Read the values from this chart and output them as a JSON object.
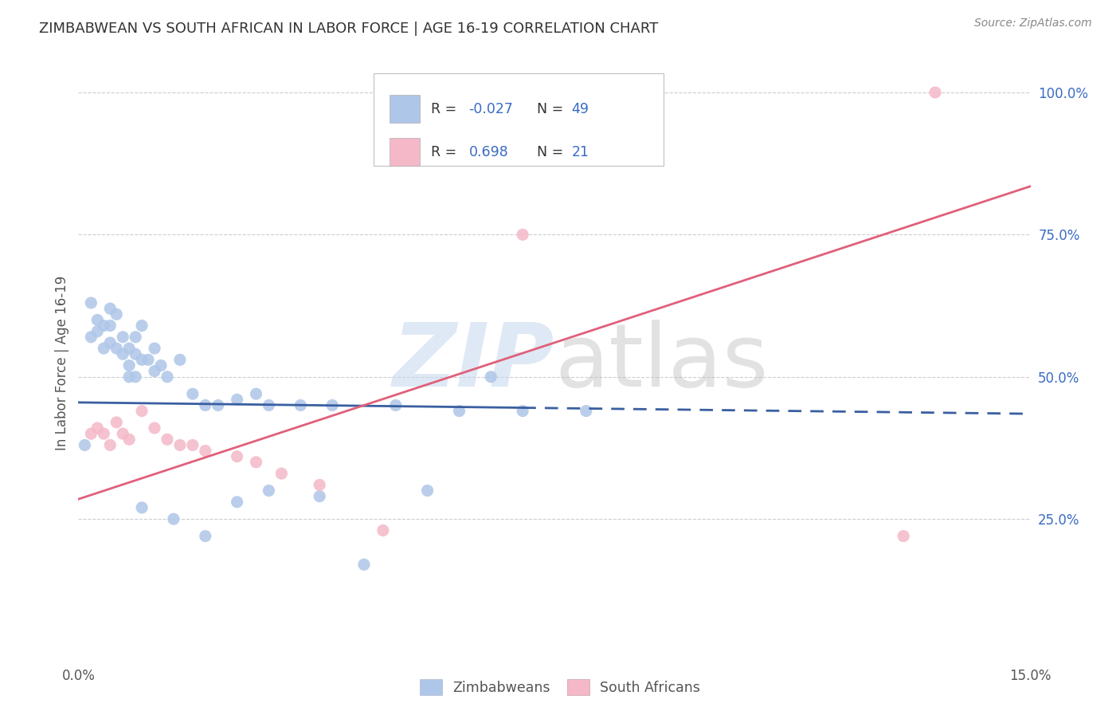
{
  "title": "ZIMBABWEAN VS SOUTH AFRICAN IN LABOR FORCE | AGE 16-19 CORRELATION CHART",
  "source": "Source: ZipAtlas.com",
  "ylabel": "In Labor Force | Age 16-19",
  "xlim": [
    0.0,
    0.15
  ],
  "ylim": [
    0.0,
    1.05
  ],
  "yticks_right": [
    0.25,
    0.5,
    0.75,
    1.0
  ],
  "ytick_labels_right": [
    "25.0%",
    "50.0%",
    "75.0%",
    "100.0%"
  ],
  "zim_color": "#aec6e8",
  "sa_color": "#f4b8c8",
  "zim_line_color": "#3a5fa0",
  "sa_line_color": "#e0607a",
  "zim_R": -0.027,
  "zim_N": 49,
  "sa_R": 0.698,
  "sa_N": 21,
  "background_color": "#ffffff",
  "grid_color": "#c8c8c8",
  "zim_line_y0": 0.455,
  "zim_line_y1": 0.435,
  "sa_line_y0": 0.285,
  "sa_line_y1": 0.835,
  "zim_x": [
    0.001,
    0.002,
    0.002,
    0.003,
    0.003,
    0.004,
    0.004,
    0.005,
    0.005,
    0.005,
    0.006,
    0.006,
    0.007,
    0.007,
    0.008,
    0.008,
    0.008,
    0.009,
    0.009,
    0.009,
    0.01,
    0.01,
    0.011,
    0.012,
    0.012,
    0.013,
    0.014,
    0.016,
    0.018,
    0.02,
    0.022,
    0.025,
    0.028,
    0.03,
    0.035,
    0.04,
    0.05,
    0.06,
    0.07,
    0.08,
    0.01,
    0.015,
    0.02,
    0.025,
    0.03,
    0.038,
    0.045,
    0.055,
    0.065
  ],
  "zim_y": [
    0.38,
    0.63,
    0.57,
    0.6,
    0.58,
    0.59,
    0.55,
    0.62,
    0.59,
    0.56,
    0.61,
    0.55,
    0.57,
    0.54,
    0.55,
    0.52,
    0.5,
    0.57,
    0.54,
    0.5,
    0.59,
    0.53,
    0.53,
    0.55,
    0.51,
    0.52,
    0.5,
    0.53,
    0.47,
    0.45,
    0.45,
    0.46,
    0.47,
    0.45,
    0.45,
    0.45,
    0.45,
    0.44,
    0.44,
    0.44,
    0.27,
    0.25,
    0.22,
    0.28,
    0.3,
    0.29,
    0.17,
    0.3,
    0.5
  ],
  "sa_x": [
    0.002,
    0.003,
    0.004,
    0.005,
    0.006,
    0.007,
    0.008,
    0.01,
    0.012,
    0.014,
    0.016,
    0.018,
    0.02,
    0.025,
    0.028,
    0.032,
    0.038,
    0.048,
    0.07,
    0.13,
    0.135
  ],
  "sa_y": [
    0.4,
    0.41,
    0.4,
    0.38,
    0.42,
    0.4,
    0.39,
    0.44,
    0.41,
    0.39,
    0.38,
    0.38,
    0.37,
    0.36,
    0.35,
    0.33,
    0.31,
    0.23,
    0.75,
    0.22,
    1.0
  ]
}
